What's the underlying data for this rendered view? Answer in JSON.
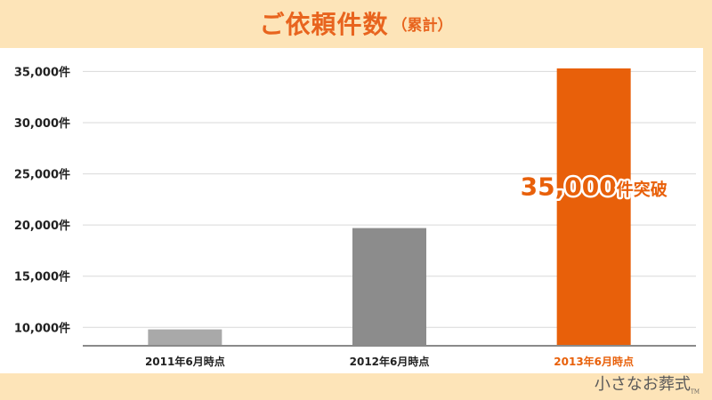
{
  "header": {
    "title": "ご依頼件数",
    "subtitle": "（累計）"
  },
  "chart_data": {
    "type": "bar",
    "categories": [
      "2011年6月時点",
      "2012年6月時点",
      "2013年6月時点"
    ],
    "values": [
      9800,
      19700,
      35300
    ],
    "ylim": [
      8200,
      36600
    ],
    "yticks": [
      10000,
      15000,
      20000,
      25000,
      30000,
      35000
    ],
    "ytick_labels": [
      "10,000件",
      "15,000件",
      "20,000件",
      "25,000件",
      "30,000件",
      "35,000件"
    ],
    "bar_colors": [
      "#a9a9a9",
      "#8c8c8c",
      "#e8600a"
    ],
    "category_label_colors": [
      "#222222",
      "#222222",
      "#e8600a"
    ],
    "grid": true,
    "annotation": {
      "number": "35,000",
      "text": "件突破",
      "color": "#e8600a"
    }
  },
  "watermark": {
    "text": "小さなお葬式",
    "tm": "TM"
  }
}
